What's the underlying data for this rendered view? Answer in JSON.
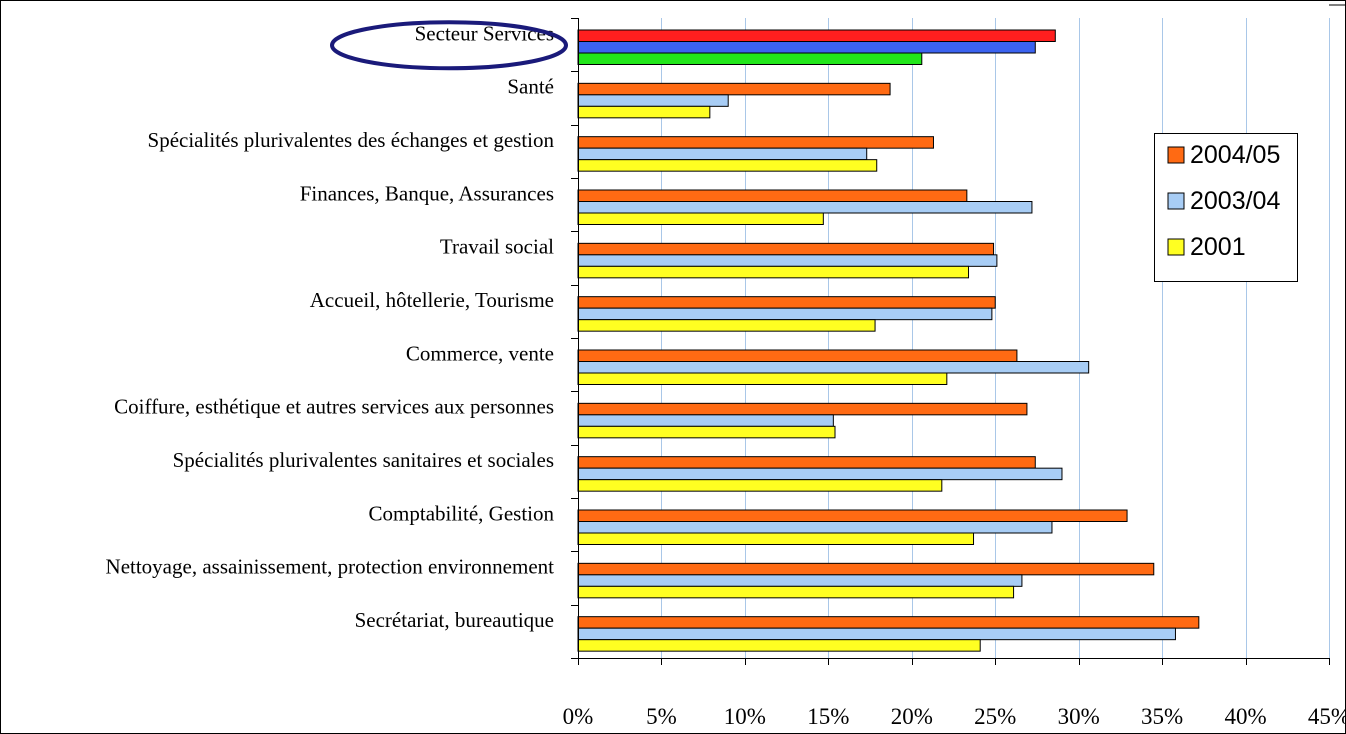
{
  "chart_data": {
    "type": "bar",
    "orientation": "horizontal",
    "categories": [
      "Secteur Services",
      "Santé",
      "Spécialités plurivalentes des échanges et gestion",
      "Finances, Banque, Assurances",
      "Travail social",
      "Accueil, hôtellerie, Tourisme",
      "Commerce, vente",
      "Coiffure, esthétique et autres services aux personnes",
      "Spécialités plurivalentes sanitaires et sociales",
      "Comptabilité, Gestion",
      "Nettoyage, assainissement, protection environnement",
      "Secrétariat, bureautique"
    ],
    "series": [
      {
        "name": "2004/05",
        "color": "#ff6a13",
        "values": [
          28.6,
          18.7,
          21.3,
          23.3,
          24.9,
          25.0,
          26.3,
          26.9,
          27.4,
          32.9,
          34.5,
          37.2
        ]
      },
      {
        "name": "2003/04",
        "color": "#a8cdf5",
        "values": [
          27.4,
          9.0,
          17.3,
          27.2,
          25.1,
          24.8,
          30.6,
          15.3,
          29.0,
          28.4,
          26.6,
          35.8
        ]
      },
      {
        "name": "2001",
        "color": "#ffff22",
        "values": [
          20.6,
          7.9,
          17.9,
          14.7,
          23.4,
          17.8,
          22.1,
          15.4,
          21.8,
          23.7,
          26.1,
          24.1
        ]
      }
    ],
    "highlight": {
      "category_index": 0,
      "colors": [
        "#ff1f1f",
        "#3b63f0",
        "#22e61b"
      ],
      "outline_color": "#1a1a7a"
    },
    "x_ticks": [
      "0%",
      "5%",
      "10%",
      "15%",
      "20%",
      "25%",
      "30%",
      "35%",
      "40%",
      "45%"
    ],
    "xlim": [
      0,
      45
    ],
    "grid": true,
    "grid_color": "#a9c7e8",
    "legend": {
      "placement": "right",
      "entries": [
        "2004/05",
        "2003/04",
        "2001"
      ]
    },
    "title": "",
    "xlabel": "",
    "ylabel": ""
  }
}
